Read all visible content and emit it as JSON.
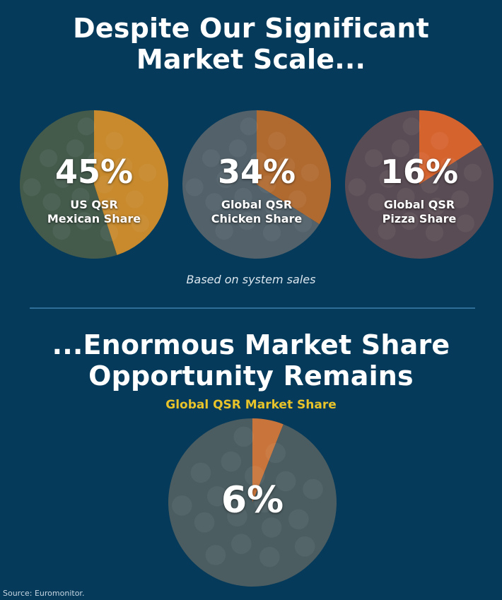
{
  "header": {
    "title_top": "Despite Our Significant\nMarket Scale...",
    "title_bottom": "...Enormous Market Share\nOpportunity Remains",
    "subtitle": "Global QSR Market Share"
  },
  "note": "Based on system sales",
  "source": "Source: Euromonitor.",
  "colors": {
    "background": "#053a5a",
    "accent": "#e8c32a"
  },
  "chart_data": [
    {
      "type": "pie",
      "value_label": "45%",
      "label": "US QSR\nMexican Share",
      "values": [
        45,
        55
      ],
      "colors": [
        "#c88a2c",
        "#445b4c"
      ],
      "image": "tacos"
    },
    {
      "type": "pie",
      "value_label": "34%",
      "label": "Global QSR\nChicken Share",
      "values": [
        34,
        66
      ],
      "colors": [
        "#b06a30",
        "#52616a"
      ],
      "image": "fried-chicken"
    },
    {
      "type": "pie",
      "value_label": "16%",
      "label": "Global QSR\nPizza Share",
      "values": [
        16,
        84
      ],
      "colors": [
        "#d5632e",
        "#5a4c54"
      ],
      "image": "pizza"
    },
    {
      "type": "pie",
      "value_label": "6%",
      "label": "",
      "values": [
        6,
        94
      ],
      "colors": [
        "#c9743a",
        "#4b5d61"
      ],
      "image": "assorted-food"
    }
  ]
}
